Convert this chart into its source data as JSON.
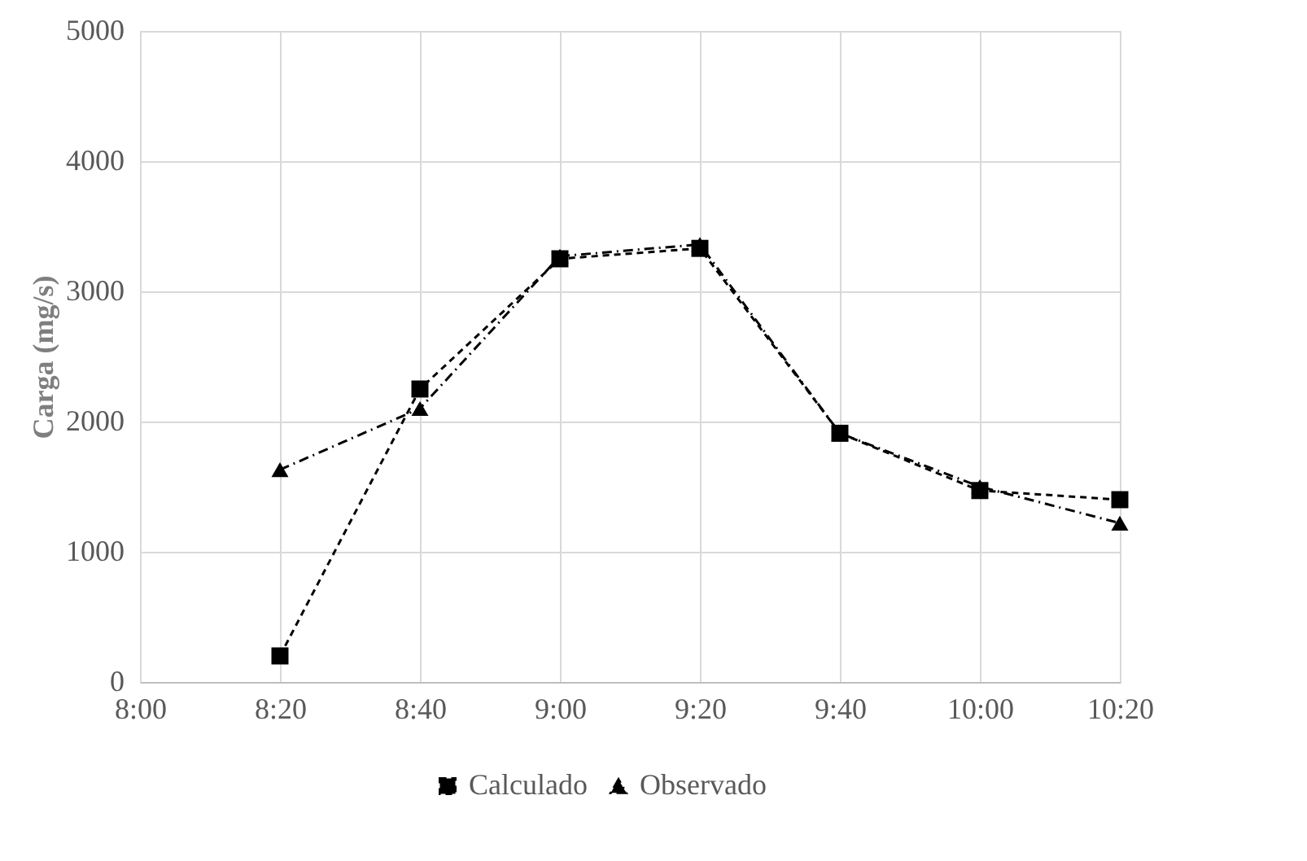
{
  "chart_data": {
    "type": "line",
    "ylabel": "Carga (mg/s)",
    "categories": [
      "8:00",
      "8:20",
      "8:40",
      "9:00",
      "9:20",
      "9:40",
      "10:00",
      "10:20"
    ],
    "series": [
      {
        "name": "Calculado",
        "color": "#000000",
        "marker": "square",
        "line_style": "dashed",
        "values": [
          null,
          200,
          2250,
          3250,
          3330,
          1910,
          1470,
          1400
        ]
      },
      {
        "name": "Observado",
        "color": "#000000",
        "marker": "triangle",
        "line_style": "dashdot",
        "values": [
          null,
          1630,
          2100,
          3270,
          3360,
          1910,
          1500,
          1220
        ]
      }
    ],
    "ylim": [
      0,
      5000
    ],
    "yticks": [
      0,
      1000,
      2000,
      3000,
      4000,
      5000
    ],
    "grid": true,
    "legend": "bottom"
  }
}
